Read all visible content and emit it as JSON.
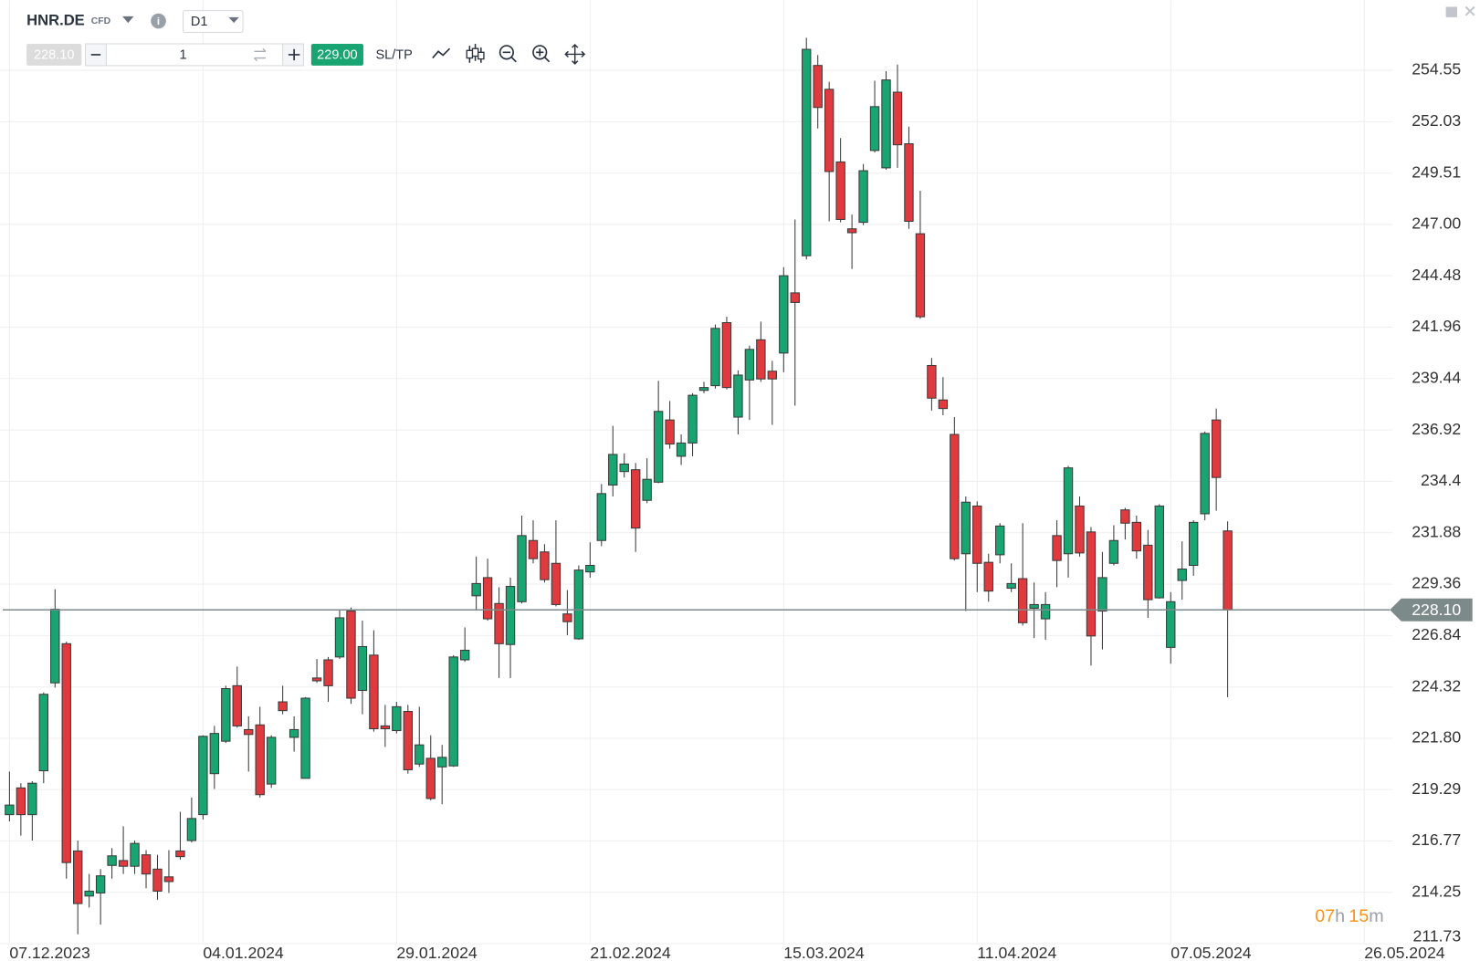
{
  "toolbar": {
    "symbol": "HNR.DE",
    "instrument_type": "CFD",
    "timeframe": "D1",
    "sell_price": "228.10",
    "quantity": "1",
    "buy_price": "229.00",
    "sl_tp": "SL/TP"
  },
  "countdown": {
    "hours": "07",
    "hours_unit": "h",
    "minutes": "15",
    "minutes_unit": "m"
  },
  "chart_data": {
    "type": "candlestick",
    "categories": [
      "07.12.2023",
      null,
      null,
      null,
      null,
      null,
      null,
      null,
      null,
      null,
      null,
      null,
      null,
      null,
      null,
      null,
      null,
      "04.01.2024",
      null,
      null,
      null,
      null,
      null,
      null,
      null,
      null,
      null,
      null,
      null,
      null,
      null,
      null,
      null,
      null,
      "29.01.2024",
      null,
      null,
      null,
      null,
      null,
      null,
      null,
      null,
      null,
      null,
      null,
      null,
      null,
      null,
      null,
      null,
      "21.02.2024",
      null,
      null,
      null,
      null,
      null,
      null,
      null,
      null,
      null,
      null,
      null,
      null,
      null,
      null,
      null,
      null,
      "15.03.2024",
      null,
      null,
      null,
      null,
      null,
      null,
      null,
      null,
      null,
      null,
      null,
      null,
      null,
      null,
      null,
      null,
      "11.04.2024",
      null,
      null,
      null,
      null,
      null,
      null,
      null,
      null,
      null,
      null,
      null,
      null,
      null,
      null,
      null,
      null,
      "07.05.2024",
      null,
      null,
      null,
      null,
      null,
      null,
      null,
      null,
      null,
      null,
      null,
      null,
      null,
      null,
      null,
      null,
      "26.05.2024"
    ],
    "open": [
      218.06,
      219.37,
      218.06,
      220.21,
      224.52,
      226.44,
      216.28,
      214.07,
      214.22,
      215.57,
      215.81,
      215.53,
      216.09,
      215.39,
      215.01,
      216.28,
      216.79,
      218.06,
      220.07,
      221.66,
      224.38,
      222.23,
      222.46,
      219.56,
      223.59,
      221.85,
      219.84,
      224.76,
      225.65,
      225.79,
      228.04,
      224.15,
      225.88,
      222.41,
      222.18,
      223.12,
      220.54,
      220.82,
      220.4,
      220.45,
      225.65,
      228.79,
      229.68,
      228.41,
      226.4,
      228.5,
      231.5,
      230.94,
      230.38,
      227.9,
      226.68,
      229.96,
      231.5,
      234.22,
      234.88,
      234.97,
      233.47,
      234.36,
      237.41,
      235.63,
      236.28,
      238.86,
      239.09,
      242.18,
      237.55,
      239.37,
      241.34,
      239.8,
      240.69,
      243.64,
      245.46,
      254.79,
      253.62,
      250.06,
      246.78,
      247.1,
      250.62,
      249.77,
      253.48,
      250.95,
      246.54,
      240.08,
      238.39,
      236.7,
      230.85,
      233.19,
      230.43,
      230.8,
      229.16,
      229.63,
      228.18,
      227.66,
      231.74,
      230.85,
      233.19,
      231.92,
      228.04,
      230.38,
      233.0,
      232.39,
      231.27,
      228.69,
      226.26,
      229.54,
      230.28,
      232.81,
      237.41,
      231.97,
      null,
      null,
      null,
      null,
      null,
      null,
      null,
      null,
      null,
      null,
      null,
      null
    ],
    "high": [
      220.17,
      219.6,
      219.7,
      224.05,
      229.11,
      226.54,
      216.79,
      215.15,
      215.39,
      216.42,
      217.49,
      216.79,
      216.32,
      216.09,
      216.32,
      218.2,
      218.9,
      221.95,
      222.41,
      224.38,
      225.32,
      222.88,
      223.35,
      221.95,
      224.38,
      222.88,
      223.82,
      225.69,
      225.79,
      228.13,
      228.22,
      227.57,
      227.1,
      223.44,
      223.59,
      223.44,
      223.35,
      221.95,
      221.48,
      225.88,
      227.24,
      230.71,
      230.61,
      229.21,
      229.68,
      232.72,
      232.49,
      231.32,
      232.49,
      229.07,
      230.28,
      231.41,
      234.27,
      237.12,
      235.77,
      235.3,
      235.53,
      239.33,
      238.34,
      236.7,
      238.72,
      239.28,
      242.09,
      242.47,
      239.84,
      241.06,
      242.23,
      240.31,
      244.9,
      247.24,
      256.15,
      255.3,
      253.99,
      251.23,
      247.48,
      249.96,
      254.04,
      254.51,
      254.83,
      251.79,
      248.65,
      240.45,
      239.51,
      237.55,
      233.66,
      233.42,
      230.85,
      232.35,
      230.38,
      232.35,
      229.44,
      228.97,
      232.49,
      235.16,
      233.66,
      232.16,
      230.94,
      232.25,
      233.1,
      232.72,
      232.02,
      233.28,
      228.97,
      231.46,
      232.49,
      236.84,
      237.97,
      232.44,
      null,
      null,
      null,
      null,
      null,
      null,
      null,
      null,
      null,
      null,
      null,
      null
    ],
    "low": [
      217.73,
      217.03,
      216.79,
      219.6,
      224.29,
      214.92,
      212.2,
      213.51,
      212.67,
      214.92,
      215.15,
      215.15,
      214.45,
      213.89,
      214.22,
      215.85,
      216.7,
      217.82,
      219.32,
      221.57,
      222.32,
      220.17,
      218.9,
      219.37,
      222.98,
      221.15,
      219.84,
      224.52,
      223.59,
      225.69,
      223.49,
      222.98,
      222.13,
      221.38,
      222.04,
      220.07,
      220.4,
      218.76,
      218.57,
      220.4,
      225.55,
      228.13,
      227.57,
      224.76,
      224.76,
      228.41,
      230.38,
      229.44,
      228.27,
      226.86,
      226.63,
      229.68,
      231.22,
      233.66,
      234.59,
      230.94,
      233.33,
      234.31,
      236.0,
      235.2,
      235.63,
      238.72,
      238.95,
      238.91,
      236.7,
      237.41,
      239.28,
      237.17,
      239.75,
      238.11,
      245.28,
      251.7,
      247.15,
      247.1,
      244.81,
      246.96,
      250.52,
      249.68,
      249.77,
      246.78,
      242.37,
      237.87,
      237.64,
      230.52,
      228.04,
      228.97,
      228.5,
      230.38,
      228.97,
      227.33,
      226.72,
      226.63,
      229.21,
      229.68,
      230.71,
      225.37,
      226.16,
      230.28,
      231.55,
      230.61,
      227.71,
      228.65,
      225.46,
      228.6,
      229.77,
      232.49,
      232.96,
      223.82,
      null,
      null,
      null,
      null,
      null,
      null,
      null,
      null,
      null,
      null,
      null,
      null
    ],
    "close": [
      218.53,
      218.06,
      219.6,
      223.96,
      228.13,
      215.71,
      213.7,
      214.31,
      215.06,
      216.04,
      215.53,
      216.65,
      215.15,
      214.31,
      214.78,
      216.0,
      217.87,
      221.9,
      222.04,
      224.24,
      222.41,
      221.99,
      219.04,
      221.85,
      223.16,
      222.23,
      223.77,
      224.62,
      224.38,
      227.71,
      223.77,
      226.3,
      222.27,
      222.27,
      223.35,
      220.26,
      221.48,
      218.85,
      220.87,
      225.79,
      226.12,
      229.39,
      227.66,
      226.44,
      229.25,
      231.74,
      230.61,
      229.58,
      228.36,
      227.52,
      230.05,
      230.28,
      233.8,
      235.72,
      235.25,
      232.11,
      234.5,
      237.83,
      236.23,
      236.28,
      238.62,
      239.0,
      241.9,
      239.0,
      239.61,
      240.87,
      239.42,
      239.42,
      244.48,
      243.17,
      255.58,
      252.73,
      249.59,
      247.24,
      246.59,
      249.63,
      252.77,
      254.08,
      250.9,
      247.15,
      242.47,
      238.48,
      237.97,
      230.61,
      233.38,
      230.38,
      229.02,
      232.21,
      229.39,
      227.47,
      228.36,
      228.36,
      230.52,
      235.06,
      230.89,
      226.82,
      229.68,
      231.5,
      232.35,
      230.99,
      228.6,
      233.19,
      228.5,
      230.1,
      232.39,
      236.75,
      234.59,
      228.1,
      null,
      null,
      null,
      null,
      null,
      null,
      null,
      null,
      null,
      null,
      null,
      null
    ],
    "up_color": "#18a572",
    "down_color": "#e0393e",
    "ylim": [
      211.73,
      257.99
    ],
    "yticks": [
      211.73,
      214.25,
      216.77,
      219.29,
      {
        "value": 221.8,
        "label": "221.80"
      },
      224.32,
      226.84,
      229.36,
      231.88,
      234.4,
      236.92,
      239.44,
      241.96,
      244.48,
      {
        "value": 247,
        "label": "247.00"
      },
      249.51,
      252.03,
      254.55
    ],
    "current_price": {
      "value": 228.1,
      "label": "228.10"
    },
    "grid": true
  }
}
